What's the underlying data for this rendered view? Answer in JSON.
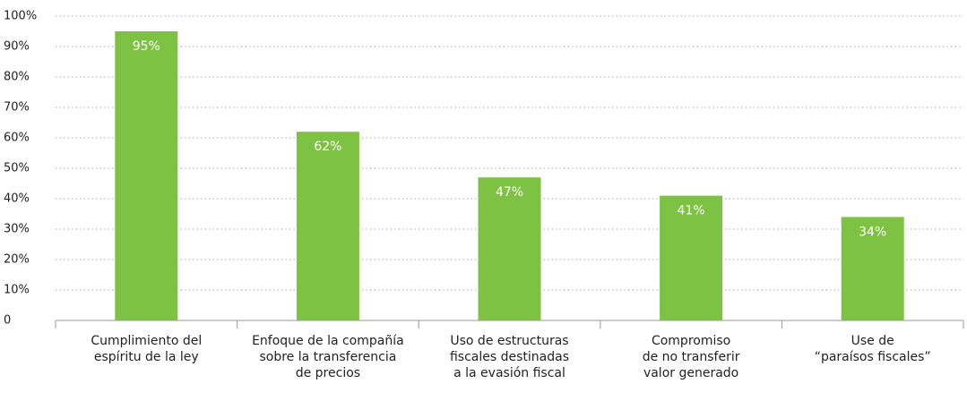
{
  "chart_data": {
    "type": "bar",
    "categories": [
      [
        "Cumplimiento del",
        "espíritu de la ley"
      ],
      [
        "Enfoque de la compañía",
        "sobre la transferencia",
        "de precios"
      ],
      [
        "Uso de estructuras",
        "fiscales destinadas",
        "a la evasión fiscal"
      ],
      [
        "Compromiso",
        "de no transferir",
        "valor generado"
      ],
      [
        "Use de",
        "“paraísos fiscales”"
      ]
    ],
    "values": [
      95,
      62,
      47,
      41,
      34
    ],
    "value_labels": [
      "95%",
      "62%",
      "47%",
      "41%",
      "34%"
    ],
    "color": "#7dc242",
    "ylim": [
      0,
      100
    ],
    "yticks": [
      0,
      {
        "value": 10,
        "label": "10%"
      },
      {
        "value": 20,
        "label": "20%"
      },
      {
        "value": 30,
        "label": "30%"
      },
      {
        "value": 40,
        "label": "40%"
      },
      {
        "value": 50,
        "label": "50%"
      },
      {
        "value": 60,
        "label": "60%"
      },
      {
        "value": 70,
        "label": "70%"
      },
      {
        "value": 80,
        "label": "80%"
      },
      {
        "value": 90,
        "label": "90%"
      },
      {
        "value": 100,
        "label": "100%"
      }
    ],
    "grid": true
  }
}
